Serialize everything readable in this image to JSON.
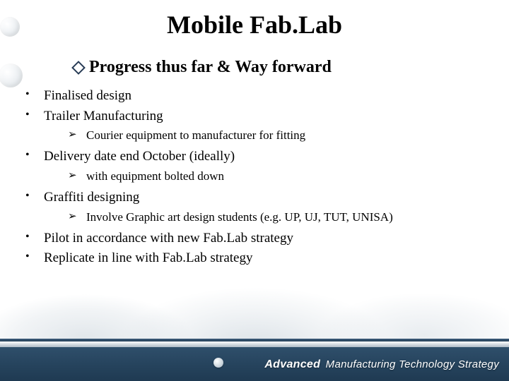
{
  "colors": {
    "text": "#000000",
    "footer_band_top": "#2f4f6b",
    "footer_band_bottom": "#1f3a52",
    "diamond_border": "#273b55",
    "background": "#ffffff"
  },
  "typography": {
    "title_fontsize": 36,
    "subtitle_fontsize": 24,
    "lvl1_fontsize": 19,
    "lvl2_fontsize": 17,
    "footer_fontsize": 16,
    "family": "Times New Roman"
  },
  "title": "Mobile Fab.Lab",
  "subtitle": "Progress thus far & Way forward",
  "bullets": [
    {
      "text": "Finalised design"
    },
    {
      "text": "Trailer Manufacturing",
      "children": [
        "Courier equipment to manufacturer for fitting"
      ]
    },
    {
      "text": "Delivery date end October (ideally)",
      "children": [
        "with equipment bolted down"
      ]
    },
    {
      "text": "Graffiti designing",
      "children": [
        "Involve Graphic art design students (e.g. UP, UJ, TUT, UNISA)"
      ]
    },
    {
      "text": "Pilot in accordance with new Fab.Lab strategy"
    },
    {
      "text": "Replicate in line with Fab.Lab strategy"
    }
  ],
  "footer": {
    "strong": "Advanced",
    "rest": " Manufacturing Technology Strategy"
  }
}
